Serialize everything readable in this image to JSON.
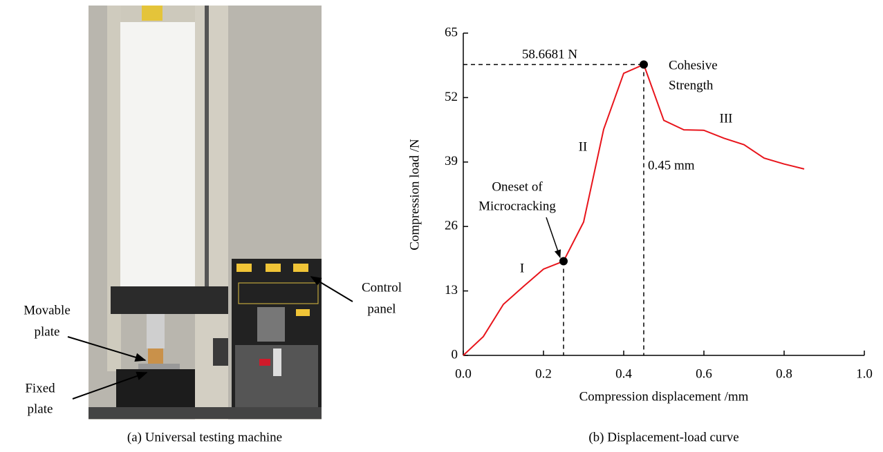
{
  "figure_a": {
    "caption": "(a) Universal testing machine",
    "labels": {
      "movable_plate": [
        "Movable",
        "plate"
      ],
      "fixed_plate": [
        "Fixed",
        "plate"
      ],
      "control_panel": [
        "Control",
        "panel"
      ]
    }
  },
  "chart_data": {
    "type": "line",
    "caption": "(b) Displacement-load curve",
    "x_label": "Compression displacement /mm",
    "y_label": "Compression load /N",
    "x": [
      0,
      0.05,
      0.1,
      0.15,
      0.2,
      0.25,
      0.3,
      0.35,
      0.4,
      0.45,
      0.5,
      0.55,
      0.6,
      0.65,
      0.7,
      0.75,
      0.8,
      0.85
    ],
    "values": [
      0,
      3.8,
      10.3,
      13.9,
      17.4,
      19.0,
      26.9,
      45.6,
      56.9,
      58.6681,
      47.4,
      45.5,
      45.4,
      43.8,
      42.5,
      39.8,
      38.6,
      37.6
    ],
    "color": "#e8141b",
    "xlim": [
      0,
      1
    ],
    "ylim": [
      0,
      65
    ],
    "xticks": [
      {
        "value": 0,
        "label": "0.0"
      },
      0.2,
      0.4,
      0.6,
      0.8,
      {
        "value": 1,
        "label": "1.0"
      }
    ],
    "yticks": [
      0,
      13,
      26,
      39,
      52,
      65
    ],
    "annotations": {
      "peak_value": "58.6681 N",
      "peak_name": [
        "Cohesive",
        "Strength"
      ],
      "peak_x": "0.45 mm",
      "onset": [
        "Oneset of",
        "Microcracking"
      ],
      "stage_1": "I",
      "stage_2": "II",
      "stage_3": "III"
    }
  }
}
